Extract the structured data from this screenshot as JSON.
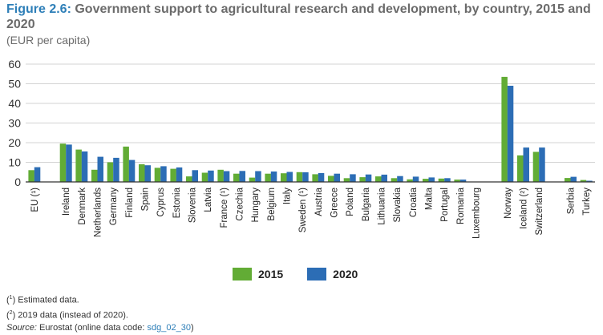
{
  "title": {
    "figure_label": "Figure 2.6:",
    "text": "Government support to agricultural research and development, by country, 2015 and 2020"
  },
  "subtitle": "(EUR per capita)",
  "colors": {
    "s2015": "#62ac35",
    "s2020": "#2c6db5",
    "grid": "#d3d3d3",
    "axis": "#333333"
  },
  "chart_data": {
    "type": "bar",
    "ylim": [
      0,
      60
    ],
    "yticks": [
      0,
      10,
      20,
      30,
      40,
      50,
      60
    ],
    "grid": true,
    "legend": "bottom-center",
    "categories": [
      "EU (¹)",
      "Ireland",
      "Denmark",
      "Netherlands",
      "Germany",
      "Finland",
      "Spain",
      "Cyprus",
      "Estonia",
      "Slovenia",
      "Latvia",
      "France (¹)",
      "Czechia",
      "Hungary",
      "Belgium",
      "Italy",
      "Sweden (¹)",
      "Austria",
      "Greece",
      "Poland",
      "Bulgaria",
      "Lithuania",
      "Slovakia",
      "Croatia",
      "Malta",
      "Portugal",
      "Romania",
      "Luxembourg",
      "Norway",
      "Iceland (²)",
      "Switzerland",
      "Serbia",
      "Turkey"
    ],
    "groups_after": [
      0,
      27,
      30
    ],
    "series": [
      {
        "name": "2015",
        "values": [
          6.0,
          19.5,
          16.5,
          6.2,
          10.0,
          18.0,
          9.0,
          7.2,
          6.7,
          2.8,
          4.7,
          6.2,
          4.2,
          2.2,
          4.2,
          4.4,
          5.0,
          3.9,
          3.1,
          1.9,
          2.4,
          2.8,
          1.9,
          1.3,
          1.6,
          1.7,
          1.2,
          0.0,
          53.5,
          13.5,
          15.3,
          2.0,
          1.0
        ]
      },
      {
        "name": "2020",
        "values": [
          7.5,
          19.0,
          15.5,
          12.8,
          12.3,
          11.2,
          8.5,
          8.0,
          7.4,
          6.0,
          5.8,
          5.5,
          5.6,
          5.5,
          5.3,
          5.1,
          4.9,
          4.5,
          4.2,
          3.9,
          3.8,
          3.7,
          3.0,
          2.7,
          2.3,
          1.9,
          1.2,
          0.0,
          49.0,
          17.5,
          17.5,
          2.6,
          0.6
        ]
      }
    ]
  },
  "legend": {
    "item1": "2015",
    "item2": "2020"
  },
  "footnotes": {
    "fn1_mark": "1",
    "fn1_text": " Estimated data.",
    "fn2_mark": "2",
    "fn2_text": " 2019 data (instead of 2020).",
    "source_label": "Source:",
    "source_text": " Eurostat (online data code: ",
    "source_code": "sdg_02_30",
    "source_end": ")"
  }
}
